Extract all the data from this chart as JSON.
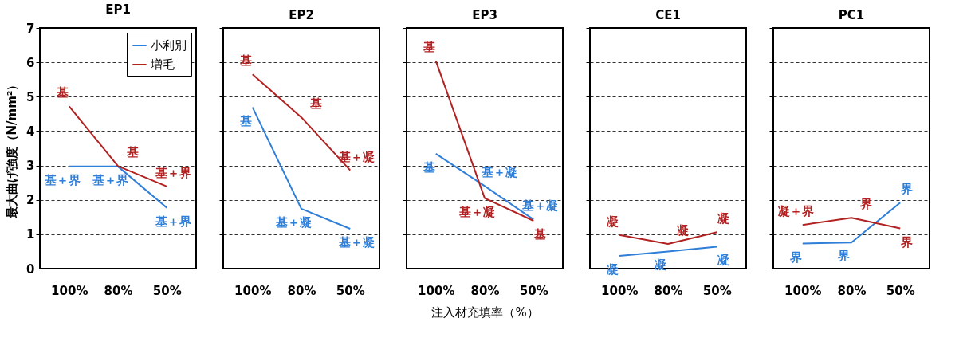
{
  "chart_data": [
    {
      "type": "line",
      "title": "EP1",
      "ylabel": "最大曲げ強度（N/mm²）",
      "categories": [
        "100%",
        "80%",
        "50%"
      ],
      "ylim": [
        0,
        7
      ],
      "yticks": [
        0,
        1,
        2,
        3,
        4,
        5,
        6,
        7
      ],
      "grid": "y",
      "legend": "top right",
      "line_style": "solid",
      "marker": "none",
      "series": [
        {
          "name": "小利別",
          "color": "#2f7ed8",
          "values": [
            2.97,
            2.97,
            1.77
          ],
          "value_labels": [
            "基＋界",
            "基＋界",
            "基＋界"
          ]
        },
        {
          "name": "増毛",
          "color": "#b22222",
          "values": [
            4.72,
            2.98,
            2.39
          ],
          "value_labels": [
            "基",
            "基",
            "基＋界"
          ]
        }
      ]
    },
    {
      "type": "line",
      "title": "EP2",
      "categories": [
        "100%",
        "80%",
        "50%"
      ],
      "ylim": [
        0,
        7
      ],
      "yticks": [
        0,
        1,
        2,
        3,
        4,
        5,
        6,
        7
      ],
      "grid": "y",
      "tick_labels": "x",
      "line_style": "solid",
      "marker": "none",
      "series": [
        {
          "color": "#2f7ed8",
          "values": [
            4.69,
            1.74,
            1.16
          ],
          "value_labels": [
            "基",
            "基＋凝",
            "基＋凝"
          ]
        },
        {
          "color": "#b22222",
          "values": [
            5.65,
            4.4,
            2.86
          ],
          "value_labels": [
            "基",
            "基",
            "基＋凝"
          ]
        }
      ]
    },
    {
      "type": "line",
      "title": "EP3",
      "xlabel": "注入材充填率（%）",
      "categories": [
        "100%",
        "80%",
        "50%"
      ],
      "ylim": [
        0,
        7
      ],
      "yticks": [
        0,
        1,
        2,
        3,
        4,
        5,
        6,
        7
      ],
      "grid": "y",
      "tick_labels": "x",
      "line_style": "solid",
      "marker": "none",
      "series": [
        {
          "color": "#2f7ed8",
          "values": [
            3.34,
            2.4,
            1.43
          ],
          "value_labels": [
            "基",
            "基＋凝",
            "基＋凝"
          ]
        },
        {
          "color": "#b22222",
          "values": [
            6.04,
            2.05,
            1.39
          ],
          "value_labels": [
            "基",
            "基＋凝",
            "基"
          ]
        }
      ]
    },
    {
      "type": "line",
      "title": "CE1",
      "categories": [
        "100%",
        "80%",
        "50%"
      ],
      "ylim": [
        0,
        7
      ],
      "yticks": [
        0,
        1,
        2,
        3,
        4,
        5,
        6,
        7
      ],
      "grid": "y",
      "tick_labels": "x",
      "line_style": "solid",
      "marker": "none",
      "series": [
        {
          "color": "#2f7ed8",
          "values": [
            0.37,
            0.5,
            0.64
          ],
          "value_labels": [
            "凝",
            "凝",
            "凝"
          ]
        },
        {
          "color": "#b22222",
          "values": [
            0.98,
            0.72,
            1.06
          ],
          "value_labels": [
            "凝",
            "凝",
            "凝"
          ]
        }
      ]
    },
    {
      "type": "line",
      "title": "PC1",
      "categories": [
        "100%",
        "80%",
        "50%"
      ],
      "ylim": [
        0,
        7
      ],
      "yticks": [
        0,
        1,
        2,
        3,
        4,
        5,
        6,
        7
      ],
      "grid": "y",
      "tick_labels": "x",
      "line_style": "solid",
      "marker": "none",
      "series": [
        {
          "color": "#2f7ed8",
          "values": [
            0.73,
            0.76,
            1.92
          ],
          "value_labels": [
            "界",
            "界",
            "界"
          ]
        },
        {
          "color": "#b22222",
          "values": [
            1.27,
            1.48,
            1.17
          ],
          "value_labels": [
            "凝＋界",
            "界",
            "界"
          ]
        }
      ]
    }
  ]
}
